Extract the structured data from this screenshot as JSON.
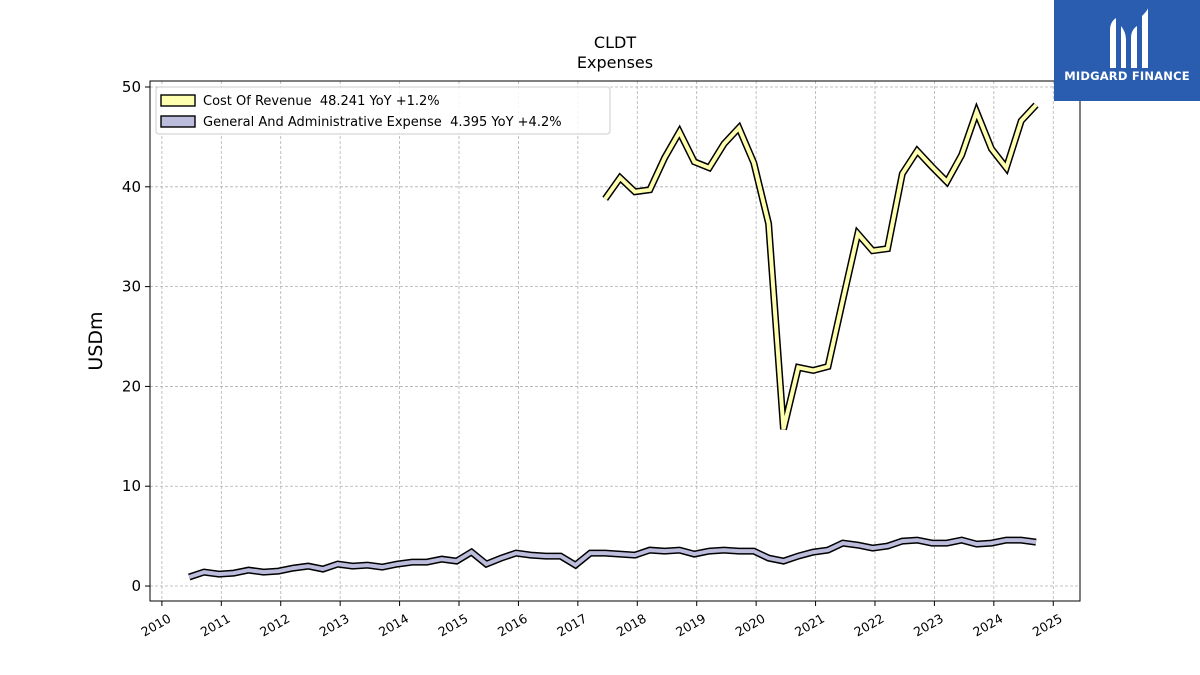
{
  "chart_data": {
    "type": "line",
    "title": "CLDT",
    "subtitle": "Expenses",
    "ylabel": "USDm",
    "xlabel": "",
    "xlim": [
      2009.8,
      2025.45
    ],
    "ylim": [
      -1.5,
      50.6
    ],
    "yticks": [
      0,
      10,
      20,
      30,
      40,
      50
    ],
    "xticks": [
      "2010",
      "2011",
      "2012",
      "2013",
      "2014",
      "2015",
      "2016",
      "2017",
      "2018",
      "2019",
      "2020",
      "2021",
      "2022",
      "2023",
      "2024",
      "2025"
    ],
    "grid": true,
    "legend_position": "top-left",
    "series": [
      {
        "name": "Cost Of Revenue  48.241 YoY +1.2%",
        "color": "#ffffb0",
        "x": [
          2017.46,
          2017.71,
          2017.96,
          2018.21,
          2018.46,
          2018.71,
          2018.96,
          2019.21,
          2019.46,
          2019.71,
          2019.96,
          2020.21,
          2020.46,
          2020.71,
          2020.96,
          2021.21,
          2021.46,
          2021.71,
          2021.96,
          2022.21,
          2022.46,
          2022.71,
          2022.96,
          2023.21,
          2023.46,
          2023.71,
          2023.96,
          2024.21,
          2024.46,
          2024.71
        ],
        "y": [
          38.8,
          40.9,
          39.5,
          39.7,
          42.9,
          45.5,
          42.5,
          41.9,
          44.3,
          45.9,
          42.4,
          36.3,
          15.7,
          21.9,
          21.6,
          22.0,
          28.7,
          35.3,
          33.6,
          33.8,
          41.3,
          43.6,
          42.0,
          40.5,
          43.2,
          47.5,
          43.8,
          41.9,
          46.6,
          48.2
        ]
      },
      {
        "name": "General And Administrative Expense  4.395 YoY +4.2%",
        "color": "#bcbcdc",
        "x": [
          2010.46,
          2010.71,
          2010.96,
          2011.21,
          2011.46,
          2011.71,
          2011.96,
          2012.21,
          2012.46,
          2012.71,
          2012.96,
          2013.21,
          2013.46,
          2013.71,
          2013.96,
          2014.21,
          2014.46,
          2014.71,
          2014.96,
          2015.21,
          2015.46,
          2015.71,
          2015.96,
          2016.21,
          2016.46,
          2016.71,
          2016.96,
          2017.21,
          2017.46,
          2017.71,
          2017.96,
          2018.21,
          2018.46,
          2018.71,
          2018.96,
          2019.21,
          2019.46,
          2019.71,
          2019.96,
          2020.21,
          2020.46,
          2020.71,
          2020.96,
          2021.21,
          2021.46,
          2021.71,
          2021.96,
          2022.21,
          2022.46,
          2022.71,
          2022.96,
          2023.21,
          2023.46,
          2023.71,
          2023.96,
          2024.21,
          2024.46,
          2024.71
        ],
        "y": [
          0.9,
          1.4,
          1.2,
          1.3,
          1.6,
          1.4,
          1.5,
          1.8,
          2.0,
          1.7,
          2.2,
          2.0,
          2.1,
          1.9,
          2.2,
          2.4,
          2.4,
          2.7,
          2.5,
          3.4,
          2.2,
          2.8,
          3.3,
          3.1,
          3.0,
          3.0,
          2.1,
          3.3,
          3.3,
          3.2,
          3.1,
          3.6,
          3.5,
          3.6,
          3.2,
          3.5,
          3.6,
          3.5,
          3.5,
          2.8,
          2.5,
          3.0,
          3.4,
          3.6,
          4.3,
          4.1,
          3.8,
          4.0,
          4.5,
          4.6,
          4.3,
          4.3,
          4.6,
          4.2,
          4.3,
          4.6,
          4.6,
          4.4
        ]
      }
    ]
  },
  "logo": {
    "text": "MIDGARD FINANCE",
    "color": "#2a5db0"
  }
}
